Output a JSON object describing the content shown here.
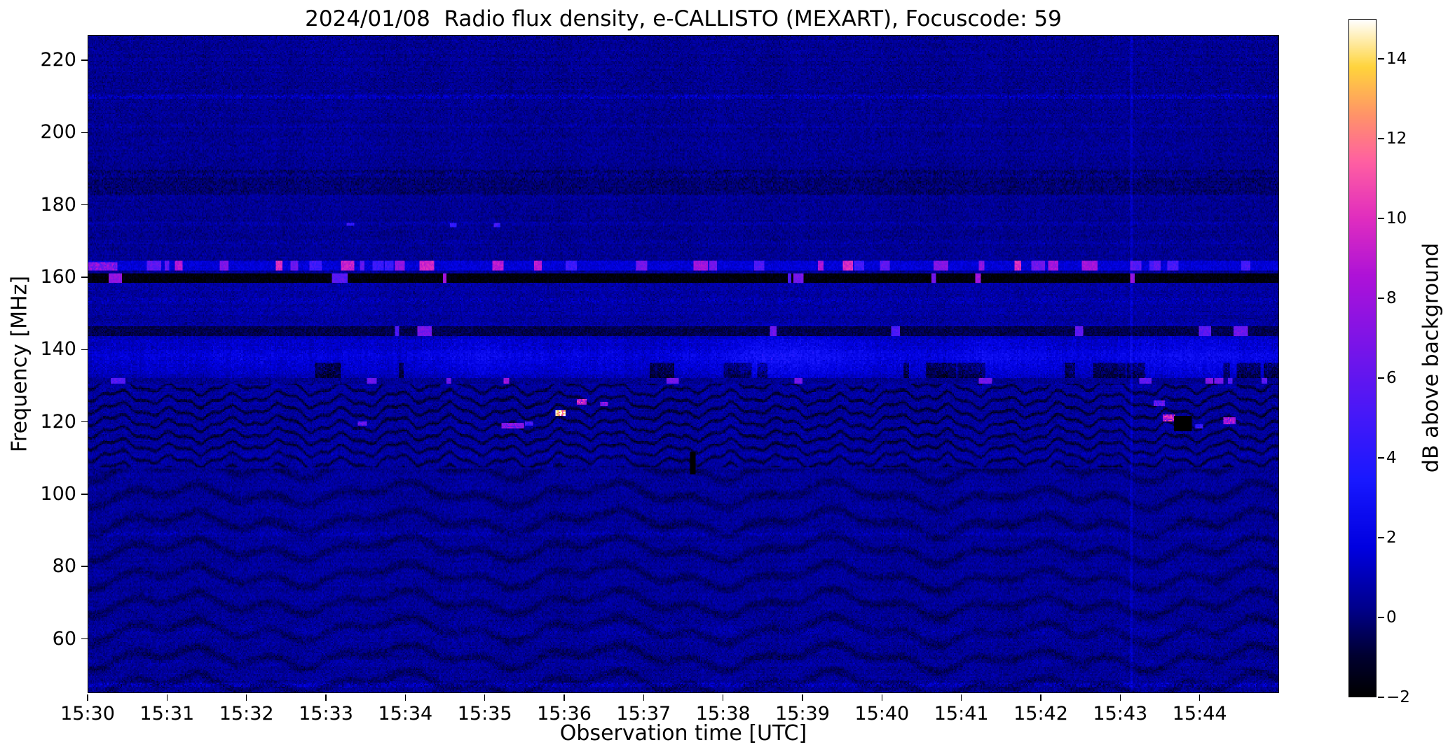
{
  "chart_data": {
    "type": "heatmap",
    "title": "2024/01/08  Radio flux density, e-CALLISTO (MEXART), Focuscode: 59",
    "xlabel": "Observation time [UTC]",
    "ylabel": "Frequency [MHz]",
    "x_ticks": [
      "15:30",
      "15:31",
      "15:32",
      "15:33",
      "15:34",
      "15:35",
      "15:36",
      "15:37",
      "15:38",
      "15:39",
      "15:40",
      "15:41",
      "15:42",
      "15:43",
      "15:44"
    ],
    "x_range_minutes": [
      0,
      15
    ],
    "y_ticks": [
      220,
      200,
      180,
      160,
      140,
      120,
      100,
      80,
      60
    ],
    "y_range_mhz": [
      45,
      227
    ],
    "grid": false,
    "colorbar": {
      "label": "dB above background",
      "ticks": [
        14,
        12,
        10,
        8,
        6,
        4,
        2,
        0,
        -2
      ],
      "tick_labels": [
        "14",
        "12",
        "10",
        "8",
        "6",
        "4",
        "2",
        "0",
        "−2"
      ],
      "range": [
        -2,
        15
      ],
      "colormap_stops": [
        [
          0.0,
          "#000000"
        ],
        [
          0.06,
          "#000030"
        ],
        [
          0.13,
          "#00008b"
        ],
        [
          0.22,
          "#0000e0"
        ],
        [
          0.32,
          "#1818ff"
        ],
        [
          0.42,
          "#4818f8"
        ],
        [
          0.52,
          "#7a14e8"
        ],
        [
          0.62,
          "#ad12d8"
        ],
        [
          0.71,
          "#e22fbe"
        ],
        [
          0.79,
          "#ff5fa2"
        ],
        [
          0.86,
          "#ff9468"
        ],
        [
          0.93,
          "#ffd43c"
        ],
        [
          1.0,
          "#ffffff"
        ]
      ]
    },
    "background_level_db": 0.35,
    "noise_sd_db": 0.5,
    "features": {
      "rfi_rows": [
        {
          "f0": 158.6,
          "f1": 161.0,
          "base": -1.8,
          "burst_p": 0.012,
          "burst_v": [
            5,
            9
          ]
        },
        {
          "f0": 161.8,
          "f1": 164.6,
          "base": 1.6,
          "burst_p": 0.035,
          "burst_v": [
            4,
            10
          ]
        },
        {
          "f0": 143.6,
          "f1": 146.4,
          "base": -0.6,
          "burst_p": 0.007,
          "burst_v": [
            5,
            7
          ]
        },
        {
          "f0": 130.5,
          "f1": 132.3,
          "base": 0.3,
          "burst_p": 0.01,
          "burst_v": [
            5,
            8
          ]
        }
      ],
      "noisy_band": {
        "f0": 131,
        "f1": 149,
        "peak_f": 138,
        "extra": 0.55,
        "streak": 1.2,
        "bumps": [
          {
            "t": 8.8,
            "w": 0.9,
            "v": 1.4
          },
          {
            "t": 5.0,
            "w": 0.8,
            "v": 0.6
          },
          {
            "t": 11.5,
            "w": 0.7,
            "v": 0.7
          },
          {
            "t": 14.0,
            "w": 0.9,
            "v": 0.9
          }
        ]
      },
      "upper_noisy_band": {
        "f0": 149,
        "f1": 158.4,
        "extra": 0.15,
        "streak": 0.35
      },
      "dark_band": {
        "f0": 183,
        "f1": 190,
        "delta": -0.35
      },
      "fringes_mid": {
        "f0": 107.5,
        "f1": 131.5,
        "period": 3.4,
        "depth": 1.5
      },
      "fringes_low": {
        "f0": 45,
        "f1": 107,
        "period": 7.5,
        "depth": 0.75
      },
      "stripes": [
        {
          "f": 210,
          "d": 0.85
        },
        {
          "f": 202,
          "d": 0.4
        },
        {
          "f": 188.5,
          "d": 0.45
        },
        {
          "f": 175,
          "d": 0.35
        },
        {
          "f": 170,
          "d": 0.3
        },
        {
          "f": 153.5,
          "d": 0.5
        },
        {
          "f": 110.5,
          "d": 0.4
        },
        {
          "f": 89,
          "d": 0.5
        },
        {
          "f": 62,
          "d": 0.3
        },
        {
          "f": 47,
          "d": 0.8
        }
      ],
      "spots": [
        {
          "t": 0.12,
          "f": 163.2,
          "dt": 0.5,
          "df": 2.2,
          "v": 7
        },
        {
          "t": 3.3,
          "f": 174.8,
          "dt": 0.1,
          "df": 1.0,
          "v": 4.5
        },
        {
          "t": 4.6,
          "f": 174.5,
          "dt": 0.08,
          "df": 1.0,
          "v": 4.5
        },
        {
          "t": 5.15,
          "f": 174.6,
          "dt": 0.08,
          "df": 1.0,
          "v": 4.5
        },
        {
          "t": 3.45,
          "f": 119.5,
          "dt": 0.12,
          "df": 1.2,
          "v": 6
        },
        {
          "t": 5.35,
          "f": 119.0,
          "dt": 0.28,
          "df": 1.6,
          "v": 7
        },
        {
          "t": 5.55,
          "f": 119.5,
          "dt": 0.1,
          "df": 1.0,
          "v": 5
        },
        {
          "t": 5.95,
          "f": 122.5,
          "dt": 0.14,
          "df": 1.6,
          "v": 14
        },
        {
          "t": 6.22,
          "f": 125.6,
          "dt": 0.12,
          "df": 1.4,
          "v": 9
        },
        {
          "t": 6.5,
          "f": 125.0,
          "dt": 0.1,
          "df": 1.2,
          "v": 7
        },
        {
          "t": 7.62,
          "f": 108.5,
          "dt": 0.06,
          "df": 6.0,
          "v": -2.2
        },
        {
          "t": 13.5,
          "f": 125.2,
          "dt": 0.14,
          "df": 1.6,
          "v": 6
        },
        {
          "t": 13.62,
          "f": 121.0,
          "dt": 0.16,
          "df": 2.0,
          "v": 9
        },
        {
          "t": 13.8,
          "f": 119.5,
          "dt": 0.22,
          "df": 4.5,
          "v": -2.6
        },
        {
          "t": 14.0,
          "f": 118.8,
          "dt": 0.1,
          "df": 1.4,
          "v": 4.5
        },
        {
          "t": 14.38,
          "f": 120.3,
          "dt": 0.16,
          "df": 1.6,
          "v": 8
        }
      ],
      "vertical_line": {
        "t": 13.15,
        "v": 0.8
      }
    }
  }
}
